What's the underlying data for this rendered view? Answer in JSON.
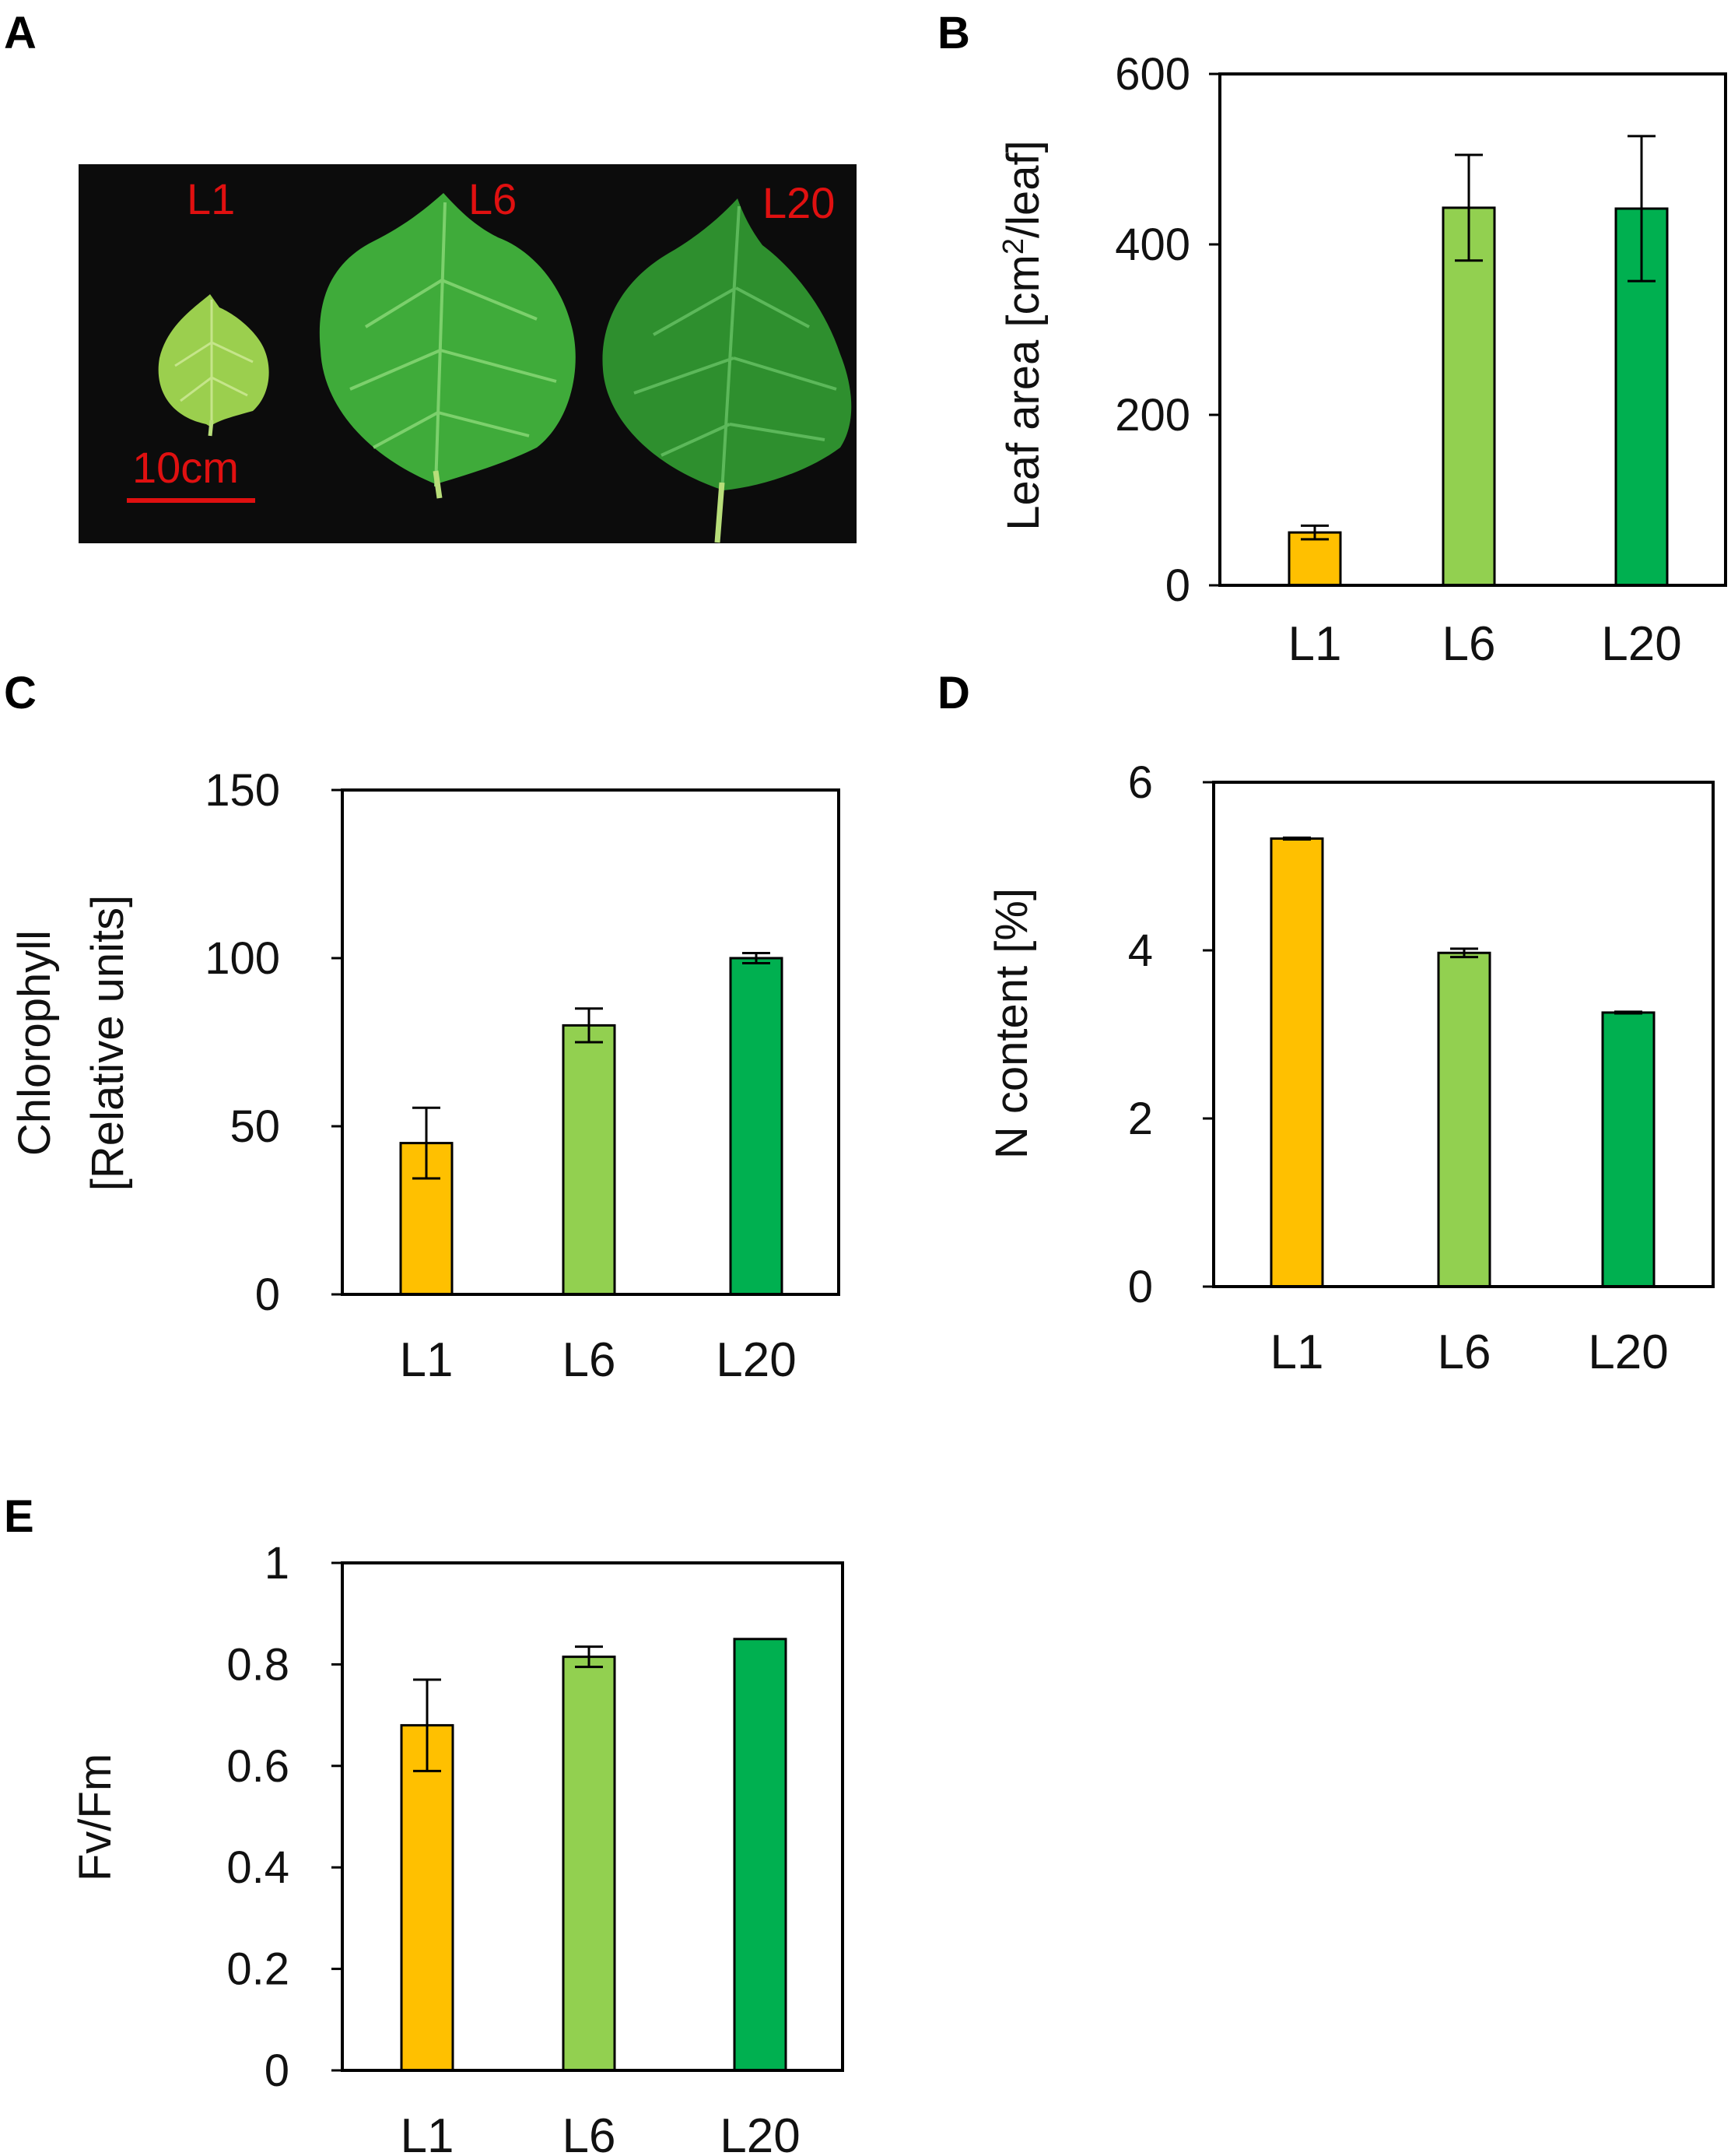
{
  "panels": {
    "A": {
      "letter": "A",
      "photo_labels": [
        "L1",
        "L6",
        "L20"
      ],
      "scale_bar_label": "10cm",
      "colors": {
        "background": "#0c0c0c",
        "label": "#e01010",
        "leaf_young": "#9bcf4e",
        "leaf_mid": "#3fab3a",
        "leaf_old": "#2e8f2e"
      }
    },
    "B": {
      "letter": "B"
    },
    "C": {
      "letter": "C"
    },
    "D": {
      "letter": "D"
    },
    "E": {
      "letter": "E"
    }
  },
  "colors": {
    "L1": "#ffc000",
    "L6": "#92d050",
    "L20": "#00b050",
    "axis": "#000000"
  },
  "chart_data": [
    {
      "panel": "B",
      "type": "bar",
      "categories": [
        "L1",
        "L6",
        "L20"
      ],
      "values": [
        62,
        443,
        442
      ],
      "errors": [
        8,
        62,
        85
      ],
      "ylabel_main": "Leaf area [cm",
      "ylabel_sup": "2",
      "ylabel_tail": "/leaf]",
      "ylim": [
        0,
        600
      ],
      "yticks": [
        0,
        200,
        400,
        600
      ],
      "ytick_labels": [
        "0",
        "200",
        "400",
        "600"
      ],
      "grid": false
    },
    {
      "panel": "C",
      "type": "bar",
      "categories": [
        "L1",
        "L6",
        "L20"
      ],
      "values": [
        45,
        80,
        100
      ],
      "errors": [
        10.5,
        5,
        1.5
      ],
      "ylabel_lines": [
        "Chlorophyll",
        "[Relative units]"
      ],
      "ylim": [
        0,
        150
      ],
      "yticks": [
        0,
        50,
        100,
        150
      ],
      "ytick_labels": [
        "0",
        "50",
        "100",
        "150"
      ],
      "grid": false
    },
    {
      "panel": "D",
      "type": "bar",
      "categories": [
        "L1",
        "L6",
        "L20"
      ],
      "values": [
        5.33,
        3.97,
        3.26
      ],
      "errors": [
        0.01,
        0.05,
        0.01
      ],
      "ylabel_lines": [
        "N content [%]"
      ],
      "ylim": [
        0,
        6
      ],
      "yticks": [
        0,
        2,
        4,
        6
      ],
      "ytick_labels": [
        "0",
        "2",
        "4",
        "6"
      ],
      "grid": false
    },
    {
      "panel": "E",
      "type": "bar",
      "categories": [
        "L1",
        "L6",
        "L20"
      ],
      "values": [
        0.68,
        0.815,
        0.85
      ],
      "errors": [
        0.09,
        0.02,
        0
      ],
      "ylabel_lines": [
        "Fv/Fm"
      ],
      "ylim": [
        0,
        1
      ],
      "yticks": [
        0,
        0.2,
        0.4,
        0.6,
        0.8,
        1
      ],
      "ytick_labels": [
        "0",
        "0.2",
        "0.4",
        "0.6",
        "0.8",
        "1"
      ],
      "grid": false
    }
  ]
}
